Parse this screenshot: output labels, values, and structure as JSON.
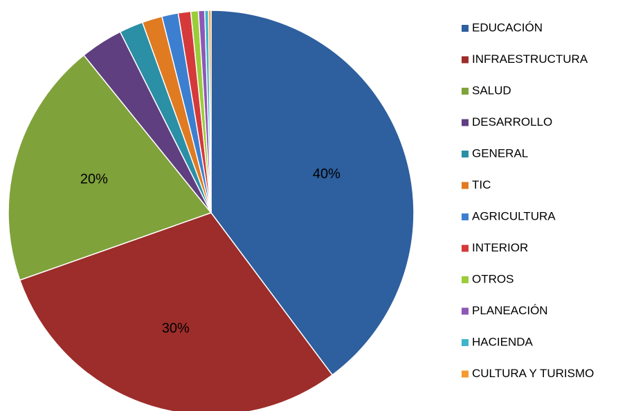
{
  "chart_data": {
    "type": "pie",
    "categories": [
      "EDUCACIÓN",
      "INFRAESTRUCTURA",
      "SALUD",
      "DESARROLLO",
      "GENERAL",
      "TIC",
      "AGRICULTURA",
      "INTERIOR",
      "OTROS",
      "PLANEACIÓN",
      "HACIENDA",
      "CULTURA Y TURISMO"
    ],
    "values": [
      39.8,
      29.8,
      19.6,
      3.4,
      1.9,
      1.6,
      1.3,
      1.0,
      0.6,
      0.5,
      0.3,
      0.2
    ],
    "value_labels": [
      "40%",
      "30%",
      "20%",
      null,
      null,
      null,
      null,
      null,
      null,
      null,
      null,
      null
    ],
    "colors": [
      "#2e5f9e",
      "#9c2d2a",
      "#7fa23b",
      "#5f3f80",
      "#2b8fa6",
      "#e07b22",
      "#3c7fd0",
      "#d6393a",
      "#9acd3a",
      "#8e58b6",
      "#3db5cc",
      "#f59a30"
    ],
    "legend": "right"
  }
}
